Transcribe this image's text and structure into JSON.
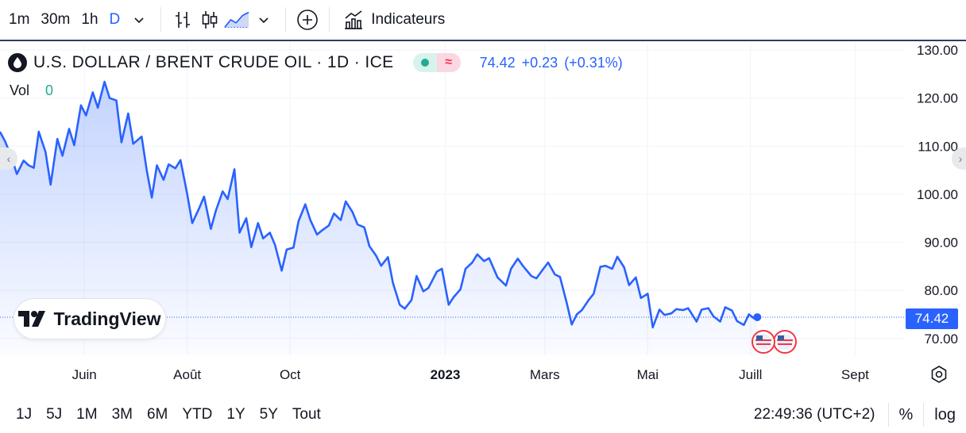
{
  "toolbar": {
    "intervals": [
      "1m",
      "30m",
      "1h",
      "D"
    ],
    "active_interval": "D",
    "indicators_label": "Indicateurs"
  },
  "legend": {
    "symbol": "U.S. DOLLAR / BRENT CRUDE OIL · 1D · ICE",
    "pill_icon": "≈",
    "last": "74.42",
    "change": "+0.23",
    "change_pct": "(+0.31%)",
    "vol_label": "Vol",
    "vol_value": "0"
  },
  "logo_text": "TradingView",
  "price_tag": "74.42",
  "bottom": {
    "ranges": [
      "1J",
      "5J",
      "1M",
      "3M",
      "6M",
      "YTD",
      "1Y",
      "5Y",
      "Tout"
    ],
    "clock": "22:49:36 (UTC+2)",
    "percent": "%",
    "log": "log"
  },
  "colors": {
    "line": "#2962ff",
    "fill": "#2962ff",
    "text": "#131722",
    "up": "#22ab94",
    "down": "#f23645"
  },
  "chart_data": {
    "type": "area",
    "ylim": [
      66,
      131
    ],
    "y_ticks": [
      130,
      120,
      110,
      100,
      90,
      80,
      70
    ],
    "y_tick_labels": [
      "130.00",
      "120.00",
      "110.00",
      "100.00",
      "90.00",
      "80.00",
      "70.00"
    ],
    "x_tick_labels": [
      "Juin",
      "Août",
      "Oct",
      "2023",
      "Mars",
      "Mai",
      "Juill",
      "Sept"
    ],
    "x_tick_dates": [
      "2022-06-01",
      "2022-08-01",
      "2022-10-01",
      "2023-01-01",
      "2023-03-01",
      "2023-05-01",
      "2023-07-01",
      "2023-09-01"
    ],
    "x_range": [
      "2022-04-12",
      "2023-09-30"
    ],
    "last_value": 74.42,
    "series": [
      {
        "values": [
          [
            "2022-04-12",
            113.0
          ],
          [
            "2022-04-15",
            111.0
          ],
          [
            "2022-04-19",
            107.5
          ],
          [
            "2022-04-22",
            104.2
          ],
          [
            "2022-04-26",
            107.0
          ],
          [
            "2022-04-29",
            106.0
          ],
          [
            "2022-05-02",
            105.5
          ],
          [
            "2022-05-05",
            113.0
          ],
          [
            "2022-05-09",
            108.8
          ],
          [
            "2022-05-12",
            102.0
          ],
          [
            "2022-05-16",
            111.5
          ],
          [
            "2022-05-19",
            108.0
          ],
          [
            "2022-05-23",
            113.6
          ],
          [
            "2022-05-26",
            110.2
          ],
          [
            "2022-05-30",
            118.5
          ],
          [
            "2022-06-02",
            116.4
          ],
          [
            "2022-06-06",
            121.2
          ],
          [
            "2022-06-09",
            118.0
          ],
          [
            "2022-06-13",
            123.4
          ],
          [
            "2022-06-16",
            120.0
          ],
          [
            "2022-06-20",
            119.5
          ],
          [
            "2022-06-23",
            110.8
          ],
          [
            "2022-06-27",
            116.8
          ],
          [
            "2022-06-30",
            110.5
          ],
          [
            "2022-07-05",
            112.0
          ],
          [
            "2022-07-08",
            105.0
          ],
          [
            "2022-07-11",
            99.3
          ],
          [
            "2022-07-14",
            106.0
          ],
          [
            "2022-07-18",
            103.0
          ],
          [
            "2022-07-21",
            106.2
          ],
          [
            "2022-07-25",
            105.4
          ],
          [
            "2022-07-28",
            107.1
          ],
          [
            "2022-08-01",
            100.0
          ],
          [
            "2022-08-04",
            94.0
          ],
          [
            "2022-08-08",
            97.0
          ],
          [
            "2022-08-11",
            99.5
          ],
          [
            "2022-08-15",
            92.8
          ],
          [
            "2022-08-18",
            96.6
          ],
          [
            "2022-08-22",
            100.6
          ],
          [
            "2022-08-25",
            99.0
          ],
          [
            "2022-08-29",
            105.2
          ],
          [
            "2022-09-01",
            92.0
          ],
          [
            "2022-09-05",
            95.0
          ],
          [
            "2022-09-08",
            89.0
          ],
          [
            "2022-09-12",
            94.0
          ],
          [
            "2022-09-15",
            90.8
          ],
          [
            "2022-09-19",
            92.0
          ],
          [
            "2022-09-22",
            89.5
          ],
          [
            "2022-09-26",
            84.1
          ],
          [
            "2022-09-29",
            88.5
          ],
          [
            "2022-10-03",
            88.9
          ],
          [
            "2022-10-06",
            94.4
          ],
          [
            "2022-10-10",
            97.9
          ],
          [
            "2022-10-13",
            94.6
          ],
          [
            "2022-10-17",
            91.6
          ],
          [
            "2022-10-20",
            92.5
          ],
          [
            "2022-10-24",
            93.5
          ],
          [
            "2022-10-27",
            96.0
          ],
          [
            "2022-10-31",
            94.6
          ],
          [
            "2022-11-03",
            98.5
          ],
          [
            "2022-11-07",
            96.3
          ],
          [
            "2022-11-10",
            93.7
          ],
          [
            "2022-11-14",
            93.1
          ],
          [
            "2022-11-17",
            89.2
          ],
          [
            "2022-11-21",
            87.2
          ],
          [
            "2022-11-24",
            85.1
          ],
          [
            "2022-11-28",
            86.9
          ],
          [
            "2022-12-01",
            81.5
          ],
          [
            "2022-12-05",
            77.0
          ],
          [
            "2022-12-08",
            76.2
          ],
          [
            "2022-12-12",
            78.0
          ],
          [
            "2022-12-15",
            83.0
          ],
          [
            "2022-12-19",
            79.8
          ],
          [
            "2022-12-22",
            80.5
          ],
          [
            "2022-12-27",
            83.9
          ],
          [
            "2022-12-30",
            84.5
          ],
          [
            "2023-01-03",
            77.0
          ],
          [
            "2023-01-06",
            78.6
          ],
          [
            "2023-01-10",
            80.2
          ],
          [
            "2023-01-13",
            84.5
          ],
          [
            "2023-01-17",
            85.8
          ],
          [
            "2023-01-20",
            87.5
          ],
          [
            "2023-01-24",
            86.1
          ],
          [
            "2023-01-27",
            86.7
          ],
          [
            "2023-02-01",
            82.7
          ],
          [
            "2023-02-06",
            81.0
          ],
          [
            "2023-02-09",
            84.5
          ],
          [
            "2023-02-13",
            86.6
          ],
          [
            "2023-02-16",
            85.1
          ],
          [
            "2023-02-21",
            83.0
          ],
          [
            "2023-02-24",
            82.5
          ],
          [
            "2023-02-28",
            84.4
          ],
          [
            "2023-03-03",
            85.8
          ],
          [
            "2023-03-07",
            83.3
          ],
          [
            "2023-03-10",
            82.8
          ],
          [
            "2023-03-14",
            77.4
          ],
          [
            "2023-03-17",
            72.9
          ],
          [
            "2023-03-20",
            75.0
          ],
          [
            "2023-03-23",
            75.9
          ],
          [
            "2023-03-27",
            78.0
          ],
          [
            "2023-03-30",
            79.3
          ],
          [
            "2023-04-03",
            84.9
          ],
          [
            "2023-04-06",
            85.1
          ],
          [
            "2023-04-10",
            84.5
          ],
          [
            "2023-04-13",
            87.0
          ],
          [
            "2023-04-17",
            84.8
          ],
          [
            "2023-04-20",
            81.1
          ],
          [
            "2023-04-24",
            82.7
          ],
          [
            "2023-04-27",
            78.4
          ],
          [
            "2023-05-01",
            79.3
          ],
          [
            "2023-05-04",
            72.3
          ],
          [
            "2023-05-08",
            76.0
          ],
          [
            "2023-05-11",
            74.9
          ],
          [
            "2023-05-15",
            75.2
          ],
          [
            "2023-05-18",
            76.1
          ],
          [
            "2023-05-22",
            75.9
          ],
          [
            "2023-05-25",
            76.3
          ],
          [
            "2023-05-30",
            73.5
          ],
          [
            "2023-06-02",
            76.0
          ],
          [
            "2023-06-06",
            76.3
          ],
          [
            "2023-06-09",
            74.6
          ],
          [
            "2023-06-13",
            73.5
          ],
          [
            "2023-06-16",
            76.5
          ],
          [
            "2023-06-20",
            75.8
          ],
          [
            "2023-06-23",
            73.6
          ],
          [
            "2023-06-27",
            72.8
          ],
          [
            "2023-06-30",
            75.0
          ],
          [
            "2023-07-03",
            74.2
          ],
          [
            "2023-07-05",
            74.42
          ]
        ]
      }
    ]
  }
}
